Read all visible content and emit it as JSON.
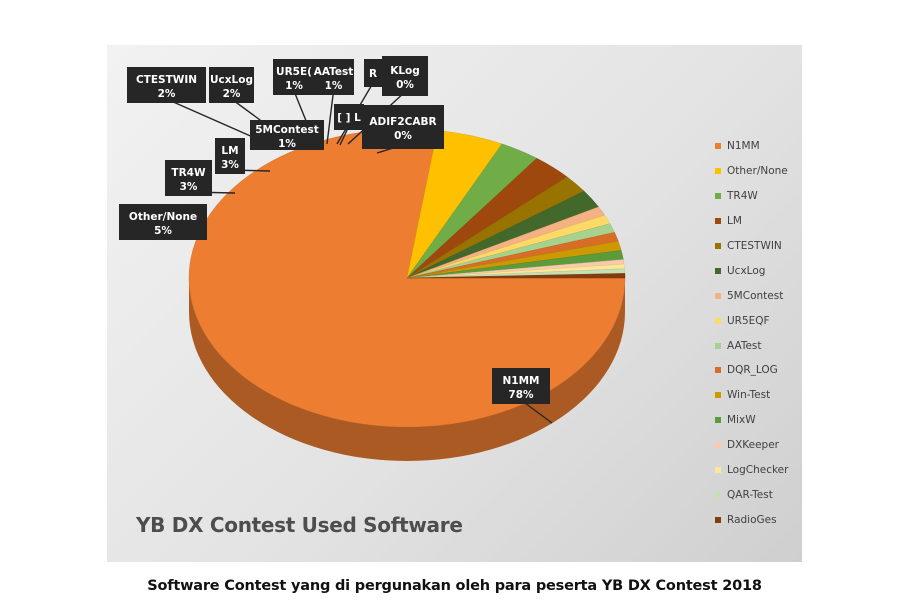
{
  "chart_data": {
    "type": "pie",
    "title": "YB DX Contest Used Software",
    "caption": "Software Contest yang di pergunakan oleh para peserta YB DX Contest 2018",
    "legend_position": "right",
    "slices": [
      {
        "name": "N1MM",
        "percent": 78,
        "color": "#ED7D31"
      },
      {
        "name": "Other/None",
        "percent": 5,
        "color": "#FFC000"
      },
      {
        "name": "TR4W",
        "percent": 3,
        "color": "#70AD47"
      },
      {
        "name": "LM",
        "percent": 3,
        "color": "#9E480E"
      },
      {
        "name": "CTESTWIN",
        "percent": 2,
        "color": "#997300"
      },
      {
        "name": "UcxLog",
        "percent": 2,
        "color": "#43682B"
      },
      {
        "name": "5MContest",
        "percent": 1,
        "color": "#F4B183"
      },
      {
        "name": "UR5EQF",
        "percent": 1,
        "color": "#FFD966"
      },
      {
        "name": "AATest",
        "percent": 1,
        "color": "#A9D18E"
      },
      {
        "name": "DQR_LOG",
        "percent": 1,
        "color": "#D86D27"
      },
      {
        "name": "Win-Test",
        "percent": 1,
        "color": "#CC9A00"
      },
      {
        "name": "MixW",
        "percent": 1,
        "color": "#5B9B3A"
      },
      {
        "name": "DXKeeper",
        "percent": 0.5,
        "color": "#F8CBAD"
      },
      {
        "name": "LogChecker",
        "percent": 0.5,
        "color": "#FFE699"
      },
      {
        "name": "QAR-Test",
        "percent": 0.5,
        "color": "#C5E0B4"
      },
      {
        "name": "RadioGes",
        "percent": 0.5,
        "color": "#843C0C"
      }
    ],
    "data_labels": [
      {
        "line1": "N1MM",
        "line2": "78%"
      },
      {
        "line1": "Other/None",
        "line2": "5%"
      },
      {
        "line1": "TR4W",
        "line2": "3%"
      },
      {
        "line1": "LM",
        "line2": "3%"
      },
      {
        "line1": "CTESTWIN",
        "line2": "2%"
      },
      {
        "line1": "UcxLog",
        "line2": "2%"
      },
      {
        "line1": "5MContest",
        "line2": "1%"
      },
      {
        "line1": "UR5E(",
        "line2": "1%"
      },
      {
        "line1": "AATest",
        "line2": "1%"
      },
      {
        "line1": "R",
        "line2": ""
      },
      {
        "line1": "KLog",
        "line2": "0%"
      },
      {
        "line1": "[ ] L",
        "line2": ""
      },
      {
        "line1": "ADIF2CABR",
        "line2": "0%"
      }
    ]
  }
}
